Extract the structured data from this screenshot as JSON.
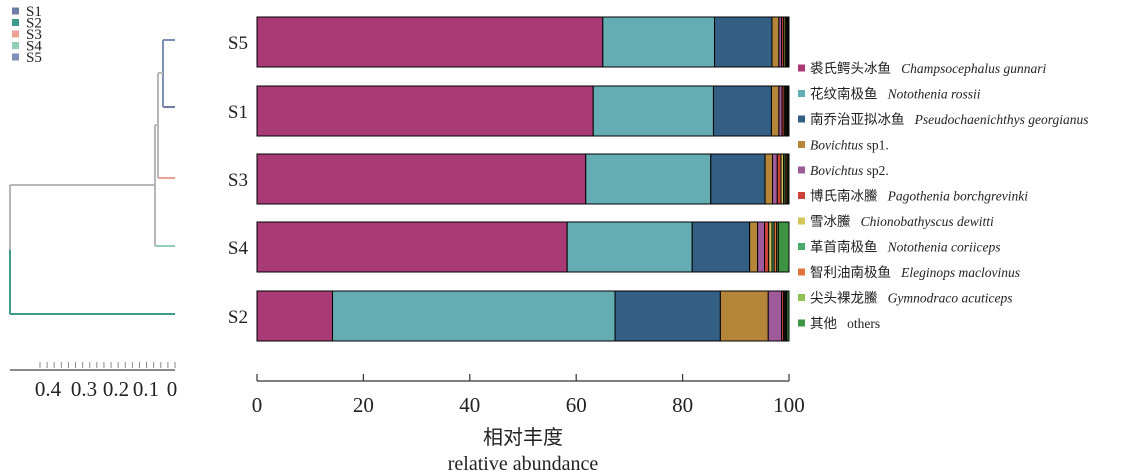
{
  "tree_legend": [
    {
      "label": "S1",
      "color": "#6f7ea6"
    },
    {
      "label": "S2",
      "color": "#3f9a8b"
    },
    {
      "label": "S3",
      "color": "#e9a293"
    },
    {
      "label": "S4",
      "color": "#92cdb4"
    },
    {
      "label": "S5",
      "color": "#7f8fba"
    }
  ],
  "tree_scale": {
    "ticks": [
      "0.4",
      "0.3",
      "0.2",
      "0.1",
      "0"
    ]
  },
  "chart_data": {
    "type": "bar",
    "orientation": "horizontal",
    "stacked": true,
    "categories": [
      "S5",
      "S1",
      "S3",
      "S4",
      "S2"
    ],
    "xlim": [
      0,
      100
    ],
    "xticks": [
      "0",
      "20",
      "40",
      "60",
      "80",
      "100"
    ],
    "xlabel_cn": "相对丰度",
    "xlabel_en": "relative abundance",
    "legend_position": "right",
    "series": [
      {
        "name_cn": "裘氏鳄头冰鱼",
        "name_latin": "Champsocephalus gunnari",
        "color": "#a83a76",
        "values": [
          65.0,
          63.2,
          61.8,
          58.3,
          14.2
        ]
      },
      {
        "name_cn": "花纹南极鱼",
        "name_latin": "Notothenia rossii",
        "color": "#64adb3",
        "values": [
          21.0,
          22.6,
          23.5,
          23.5,
          53.1
        ]
      },
      {
        "name_cn": "南乔治亚拟冰鱼",
        "name_latin": "Pseudochaenichthys georgianus",
        "color": "#345f84",
        "values": [
          10.8,
          10.9,
          10.2,
          10.8,
          19.8
        ]
      },
      {
        "name_cn": "",
        "name_latin": "Bovichtus",
        "name_suffix": "sp1.",
        "color": "#b5853a",
        "values": [
          1.3,
          1.4,
          1.4,
          1.5,
          9.0
        ]
      },
      {
        "name_cn": "",
        "name_latin": "Bovichtus",
        "name_suffix": "sp2.",
        "color": "#9e5a99",
        "values": [
          0.5,
          0.6,
          0.9,
          1.3,
          2.5
        ]
      },
      {
        "name_cn": "博氏南冰鰧",
        "name_latin": "Pagothenia borchgrevinki",
        "color": "#c94337",
        "values": [
          0.4,
          0.4,
          0.7,
          0.8,
          0.4
        ]
      },
      {
        "name_cn": "雪冰鰧",
        "name_latin": "Chionobathyscus dewitti",
        "color": "#d6c55b",
        "values": [
          0.3,
          0.2,
          0.5,
          0.6,
          0.2
        ]
      },
      {
        "name_cn": "革首南极鱼",
        "name_latin": "Notothenia coriiceps",
        "color": "#4bab6a",
        "values": [
          0.2,
          0.2,
          0.3,
          0.4,
          0.2
        ]
      },
      {
        "name_cn": "智利油南极鱼",
        "name_latin": "Eleginops maclovinus",
        "color": "#e0733c",
        "values": [
          0.2,
          0.2,
          0.3,
          0.5,
          0.1
        ]
      },
      {
        "name_cn": "尖头裸龙鰧",
        "name_latin": "Gymnodraco acuticeps",
        "color": "#8fc154",
        "values": [
          0.1,
          0.1,
          0.2,
          0.3,
          0.1
        ]
      },
      {
        "name_cn": "其他",
        "name_latin": "others",
        "latin_italic": false,
        "color": "#3f9443",
        "values": [
          0.2,
          0.2,
          0.2,
          2.0,
          0.4
        ]
      }
    ]
  }
}
